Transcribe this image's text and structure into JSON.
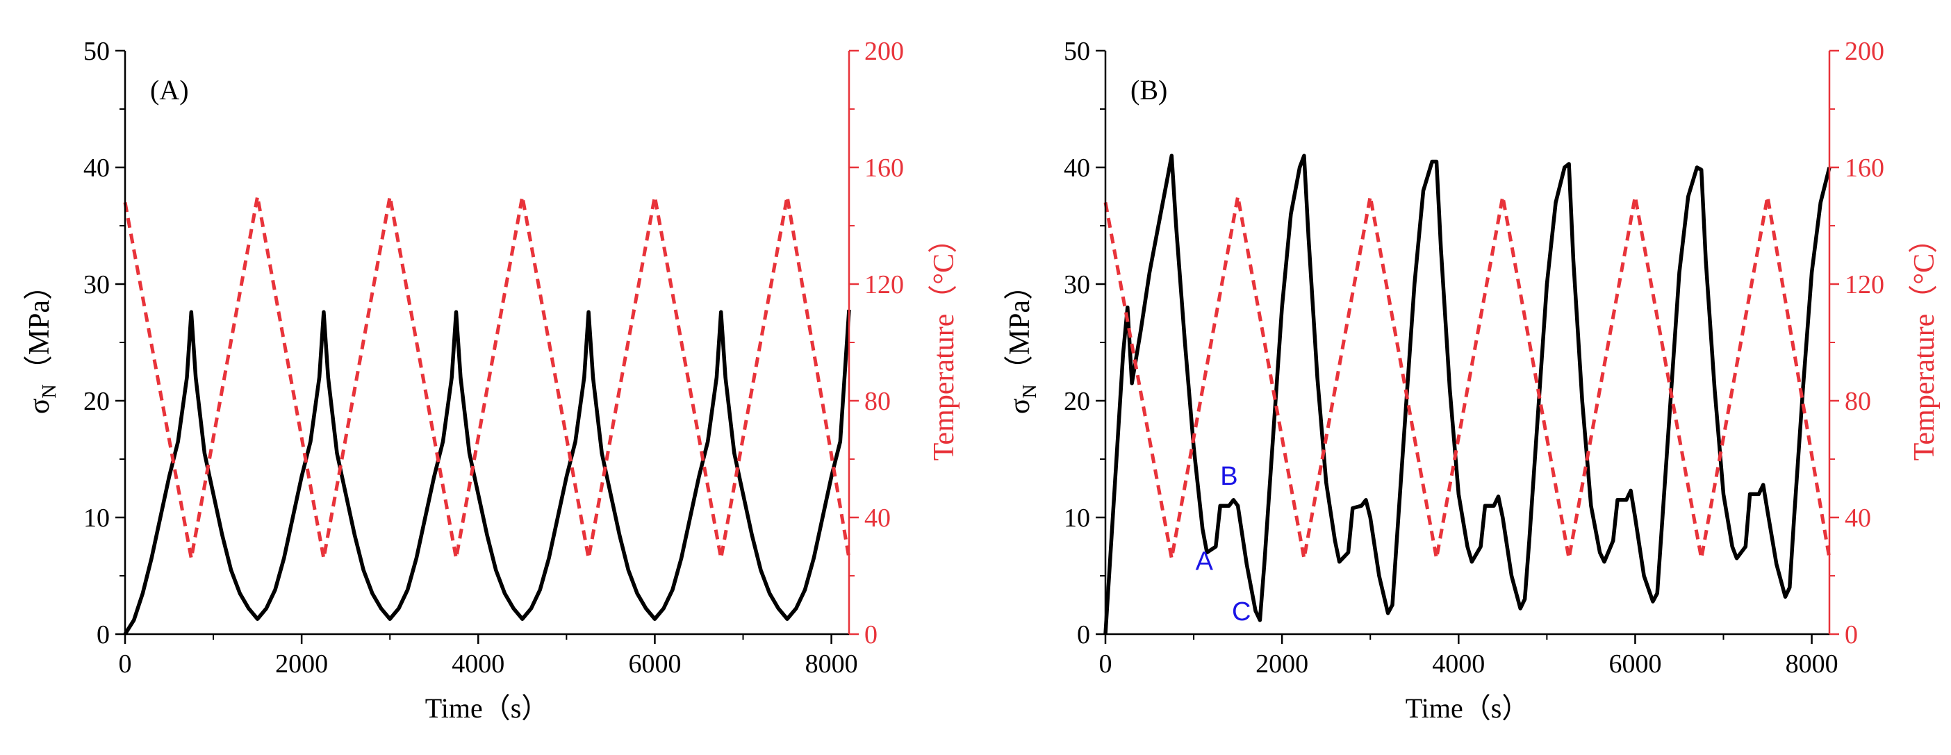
{
  "colors": {
    "stress": "#000000",
    "temperature": "#e8333a",
    "annotation": "#1a14e6",
    "axis": "#000000"
  },
  "chart_data": [
    {
      "type": "line",
      "panel_label": "(A)",
      "xlabel": "Time（s）",
      "ylabel": "σN（MPa）",
      "ylabel_main": "σ",
      "ylabel_sub": "N",
      "ylabel_unit": "（MPa）",
      "y2label": "Temperature（°C）",
      "xlim": [
        0,
        8200
      ],
      "ylim": [
        0,
        50
      ],
      "y2lim": [
        0,
        200
      ],
      "xticks": [
        0,
        2000,
        4000,
        6000,
        8000
      ],
      "yticks": [
        0,
        10,
        20,
        30,
        40,
        50
      ],
      "y2ticks": [
        0,
        40,
        80,
        120,
        160,
        200
      ],
      "series": [
        {
          "name": "σN",
          "axis": "left",
          "style": "solid",
          "color": "#000000",
          "x": [
            0,
            100,
            200,
            300,
            400,
            500,
            600,
            700,
            750,
            800,
            900,
            1000,
            1100,
            1200,
            1300,
            1400,
            1500,
            1600,
            1700,
            1800,
            1900,
            2000,
            2100,
            2200,
            2250,
            2300,
            2400,
            2500,
            2600,
            2700,
            2800,
            2900,
            3000,
            3100,
            3200,
            3300,
            3400,
            3500,
            3600,
            3700,
            3750,
            3800,
            3900,
            4000,
            4100,
            4200,
            4300,
            4400,
            4500,
            4600,
            4700,
            4800,
            4900,
            5000,
            5100,
            5200,
            5250,
            5300,
            5400,
            5500,
            5600,
            5700,
            5800,
            5900,
            6000,
            6100,
            6200,
            6300,
            6400,
            6500,
            6600,
            6700,
            6750,
            6800,
            6900,
            7000,
            7100,
            7200,
            7300,
            7400,
            7500,
            7600,
            7700,
            7800,
            7900,
            8000,
            8100,
            8200
          ],
          "y": [
            0,
            1.2,
            3.5,
            6.5,
            10,
            13.5,
            16.5,
            22,
            27.6,
            22,
            15.5,
            12,
            8.5,
            5.5,
            3.5,
            2.2,
            1.3,
            2.2,
            3.8,
            6.5,
            10,
            13.5,
            16.5,
            22,
            27.6,
            22,
            15.5,
            12,
            8.5,
            5.5,
            3.5,
            2.2,
            1.3,
            2.2,
            3.8,
            6.5,
            10,
            13.5,
            16.5,
            22,
            27.6,
            22,
            15.5,
            12,
            8.5,
            5.5,
            3.5,
            2.2,
            1.3,
            2.2,
            3.8,
            6.5,
            10,
            13.5,
            16.5,
            22,
            27.6,
            22,
            15.5,
            12,
            8.5,
            5.5,
            3.5,
            2.2,
            1.3,
            2.2,
            3.8,
            6.5,
            10,
            13.5,
            16.5,
            22,
            27.6,
            22,
            15.5,
            12,
            8.5,
            5.5,
            3.5,
            2.2,
            1.3,
            2.2,
            3.8,
            6.5,
            10,
            13.5,
            16.5,
            27.8
          ]
        },
        {
          "name": "Temperature",
          "axis": "right",
          "style": "dashed",
          "color": "#e8333a",
          "x": [
            0,
            750,
            1500,
            2250,
            3000,
            3750,
            4500,
            5250,
            6000,
            6750,
            7500,
            8200
          ],
          "y": [
            148,
            26,
            150,
            26,
            150,
            26,
            150,
            26,
            150,
            26,
            150,
            26
          ]
        }
      ],
      "annotations": []
    },
    {
      "type": "line",
      "panel_label": "(B)",
      "xlabel": "Time（s）",
      "ylabel": "σN（MPa）",
      "ylabel_main": "σ",
      "ylabel_sub": "N",
      "ylabel_unit": "（MPa）",
      "y2label": "Temperature（°C）",
      "xlim": [
        0,
        8200
      ],
      "ylim": [
        0,
        50
      ],
      "y2lim": [
        0,
        200
      ],
      "xticks": [
        0,
        2000,
        4000,
        6000,
        8000
      ],
      "yticks": [
        0,
        10,
        20,
        30,
        40,
        50
      ],
      "y2ticks": [
        0,
        40,
        80,
        120,
        160,
        200
      ],
      "series": [
        {
          "name": "σN",
          "axis": "left",
          "style": "solid",
          "color": "#000000",
          "x": [
            0,
            100,
            200,
            250,
            300,
            400,
            500,
            600,
            700,
            750,
            800,
            900,
            1000,
            1100,
            1150,
            1250,
            1300,
            1400,
            1450,
            1500,
            1600,
            1700,
            1750,
            1800,
            1900,
            2000,
            2100,
            2200,
            2250,
            2300,
            2400,
            2500,
            2600,
            2650,
            2750,
            2800,
            2900,
            2950,
            3000,
            3100,
            3200,
            3250,
            3300,
            3400,
            3500,
            3600,
            3700,
            3750,
            3800,
            3900,
            4000,
            4100,
            4150,
            4250,
            4300,
            4400,
            4450,
            4500,
            4600,
            4700,
            4750,
            4800,
            4900,
            5000,
            5100,
            5200,
            5250,
            5300,
            5400,
            5500,
            5600,
            5650,
            5750,
            5800,
            5900,
            5950,
            6000,
            6100,
            6200,
            6250,
            6300,
            6400,
            6500,
            6600,
            6700,
            6750,
            6800,
            6900,
            7000,
            7100,
            7150,
            7250,
            7300,
            7400,
            7450,
            7500,
            7600,
            7700,
            7750,
            7800,
            7900,
            8000,
            8100,
            8200
          ],
          "y": [
            0,
            12,
            24,
            28,
            21.5,
            26,
            31,
            35,
            39,
            41,
            35,
            25,
            16,
            9,
            7,
            7.5,
            11,
            11,
            11.5,
            11,
            6,
            2,
            1.2,
            6,
            17,
            28,
            36,
            40,
            41,
            34,
            22,
            13,
            8,
            6.2,
            7,
            10.8,
            11,
            11.5,
            10,
            5,
            1.8,
            2.5,
            8,
            19,
            30,
            38,
            40.5,
            40.5,
            33,
            21,
            12,
            7.5,
            6.2,
            7.5,
            11,
            11,
            11.8,
            10,
            5,
            2.2,
            3,
            8,
            19,
            30,
            37,
            40,
            40.3,
            32,
            20,
            11,
            7,
            6.2,
            8,
            11.5,
            11.5,
            12.3,
            10,
            5,
            2.8,
            3.5,
            9,
            20,
            31,
            37.5,
            40,
            39.8,
            32,
            21,
            12,
            7.5,
            6.5,
            7.5,
            12,
            12,
            12.8,
            10.5,
            6,
            3.2,
            4,
            10,
            21,
            31,
            37,
            40
          ]
        },
        {
          "name": "Temperature",
          "axis": "right",
          "style": "dashed",
          "color": "#e8333a",
          "x": [
            0,
            750,
            1500,
            2250,
            3000,
            3750,
            4500,
            5250,
            6000,
            6750,
            7500,
            8200
          ],
          "y": [
            148,
            26,
            150,
            26,
            150,
            26,
            150,
            26,
            150,
            26,
            150,
            26
          ]
        }
      ],
      "annotations": [
        {
          "text": "A",
          "x": 1120,
          "y": 5.5
        },
        {
          "text": "B",
          "x": 1400,
          "y": 12.8
        },
        {
          "text": "C",
          "x": 1540,
          "y": 1.2
        }
      ]
    }
  ]
}
